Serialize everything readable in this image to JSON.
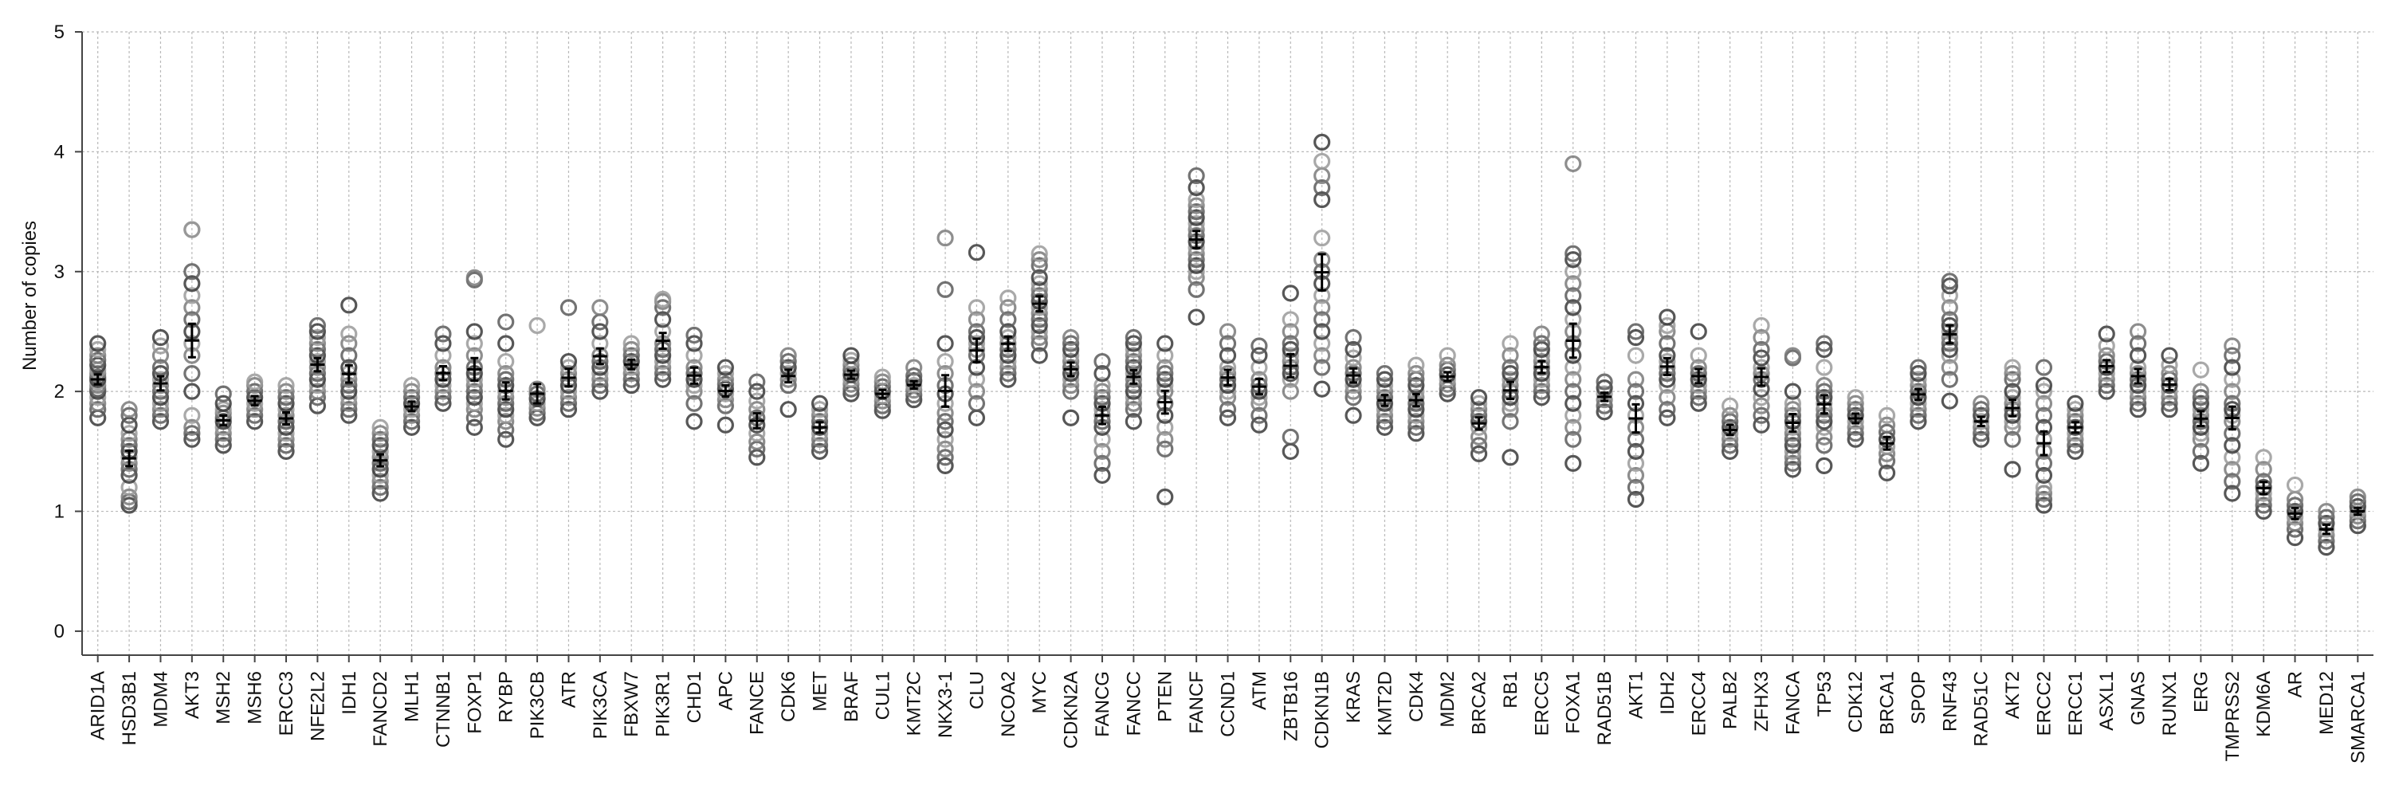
{
  "chart_data": {
    "type": "scatter",
    "title": "",
    "xlabel": "",
    "ylabel": "Number of copies",
    "ylim": [
      -0.2,
      5
    ],
    "yticks": [
      0,
      1,
      2,
      3,
      4,
      5
    ],
    "grid": true,
    "legend": "none",
    "marker": "open-circle",
    "point_colors": [
      "#3a3a3a",
      "#5a5a5a",
      "#7a7a7a",
      "#9a9a9a"
    ],
    "mean_color": "#000000",
    "categories": [
      "ARID1A",
      "HSD3B1",
      "MDM4",
      "AKT3",
      "MSH2",
      "MSH6",
      "ERCC3",
      "NFE2L2",
      "IDH1",
      "FANCD2",
      "MLH1",
      "CTNNB1",
      "FOXP1",
      "RYBP",
      "PIK3CB",
      "ATR",
      "PIK3CA",
      "FBXW7",
      "PIK3R1",
      "CHD1",
      "APC",
      "FANCE",
      "CDK6",
      "MET",
      "BRAF",
      "CUL1",
      "KMT2C",
      "NKX3-1",
      "CLU",
      "NCOA2",
      "MYC",
      "CDKN2A",
      "FANCG",
      "FANCC",
      "PTEN",
      "FANCF",
      "CCND1",
      "ATM",
      "ZBTB16",
      "CDKN1B",
      "KRAS",
      "KMT2D",
      "CDK4",
      "MDM2",
      "BRCA2",
      "RB1",
      "ERCC5",
      "FOXA1",
      "RAD51B",
      "AKT1",
      "IDH2",
      "ERCC4",
      "PALB2",
      "ZFHX3",
      "FANCA",
      "TP53",
      "CDK12",
      "BRCA1",
      "SPOP",
      "RNF43",
      "RAD51C",
      "AKT2",
      "ERCC2",
      "ERCC1",
      "ASXL1",
      "GNAS",
      "RUNX1",
      "ERG",
      "TMPRSS2",
      "KDM6A",
      "AR",
      "MED12",
      "SMARCA1"
    ],
    "series": [
      {
        "category": "ARID1A",
        "values": [
          1.78,
          1.85,
          1.9,
          1.95,
          2.0,
          2.02,
          2.05,
          2.08,
          2.1,
          2.12,
          2.15,
          2.18,
          2.22,
          2.26,
          2.3,
          2.35,
          2.4
        ]
      },
      {
        "category": "HSD3B1",
        "values": [
          1.05,
          1.08,
          1.12,
          1.2,
          1.3,
          1.35,
          1.4,
          1.45,
          1.5,
          1.55,
          1.6,
          1.65,
          1.72,
          1.8,
          1.85
        ]
      },
      {
        "category": "MDM4",
        "values": [
          1.75,
          1.8,
          1.85,
          1.9,
          1.95,
          2.0,
          2.05,
          2.1,
          2.15,
          2.2,
          2.3,
          2.38,
          2.45
        ]
      },
      {
        "category": "AKT3",
        "values": [
          1.6,
          1.65,
          1.7,
          1.8,
          2.0,
          2.15,
          2.3,
          2.4,
          2.5,
          2.6,
          2.7,
          2.8,
          2.9,
          3.0,
          3.35,
          3.35
        ]
      },
      {
        "category": "MSH2",
        "values": [
          1.55,
          1.6,
          1.65,
          1.7,
          1.75,
          1.78,
          1.82,
          1.85,
          1.9,
          1.98
        ]
      },
      {
        "category": "MSH6",
        "values": [
          1.75,
          1.8,
          1.85,
          1.9,
          1.95,
          2.0,
          2.05,
          2.08
        ]
      },
      {
        "category": "ERCC3",
        "values": [
          1.5,
          1.55,
          1.6,
          1.65,
          1.7,
          1.75,
          1.8,
          1.85,
          1.9,
          1.95,
          2.0,
          2.05
        ]
      },
      {
        "category": "NFE2L2",
        "values": [
          1.88,
          1.95,
          2.0,
          2.05,
          2.1,
          2.15,
          2.2,
          2.25,
          2.3,
          2.35,
          2.4,
          2.45,
          2.5,
          2.55
        ]
      },
      {
        "category": "IDH1",
        "values": [
          1.8,
          1.85,
          1.9,
          1.95,
          2.0,
          2.05,
          2.1,
          2.15,
          2.2,
          2.3,
          2.4,
          2.48,
          2.72
        ]
      },
      {
        "category": "FANCD2",
        "values": [
          1.15,
          1.2,
          1.25,
          1.3,
          1.35,
          1.4,
          1.45,
          1.5,
          1.55,
          1.6,
          1.65,
          1.7
        ]
      },
      {
        "category": "MLH1",
        "values": [
          1.7,
          1.75,
          1.8,
          1.85,
          1.9,
          1.95,
          2.0,
          2.05
        ]
      },
      {
        "category": "CTNNB1",
        "values": [
          1.9,
          1.95,
          2.0,
          2.05,
          2.1,
          2.15,
          2.2,
          2.3,
          2.4,
          2.48
        ]
      },
      {
        "category": "FOXP1",
        "values": [
          1.7,
          1.78,
          1.85,
          1.9,
          1.95,
          2.0,
          2.05,
          2.1,
          2.15,
          2.2,
          2.3,
          2.4,
          2.5,
          2.93,
          2.95
        ]
      },
      {
        "category": "RYBP",
        "values": [
          1.6,
          1.68,
          1.75,
          1.8,
          1.85,
          1.9,
          1.95,
          2.0,
          2.05,
          2.1,
          2.15,
          2.25,
          2.4,
          2.58
        ]
      },
      {
        "category": "PIK3CB",
        "values": [
          1.78,
          1.82,
          1.86,
          1.9,
          1.94,
          1.98,
          2.02,
          2.55
        ]
      },
      {
        "category": "ATR",
        "values": [
          1.85,
          1.9,
          1.95,
          2.0,
          2.05,
          2.1,
          2.15,
          2.2,
          2.25,
          2.7
        ]
      },
      {
        "category": "PIK3CA",
        "values": [
          2.0,
          2.05,
          2.1,
          2.15,
          2.2,
          2.25,
          2.3,
          2.4,
          2.5,
          2.58,
          2.7
        ]
      },
      {
        "category": "FBXW7",
        "values": [
          2.05,
          2.1,
          2.15,
          2.2,
          2.25,
          2.3,
          2.35,
          2.4
        ]
      },
      {
        "category": "PIK3R1",
        "values": [
          2.1,
          2.15,
          2.2,
          2.25,
          2.3,
          2.35,
          2.4,
          2.5,
          2.6,
          2.7,
          2.75,
          2.77
        ]
      },
      {
        "category": "CHD1",
        "values": [
          1.75,
          1.9,
          2.0,
          2.05,
          2.1,
          2.15,
          2.2,
          2.3,
          2.4,
          2.47
        ]
      },
      {
        "category": "APC",
        "values": [
          1.72,
          1.88,
          1.93,
          1.98,
          2.02,
          2.06,
          2.1,
          2.15,
          2.2
        ]
      },
      {
        "category": "FANCE",
        "values": [
          1.45,
          1.52,
          1.58,
          1.65,
          1.72,
          1.78,
          1.85,
          1.92,
          2.0,
          2.08
        ]
      },
      {
        "category": "CDK6",
        "values": [
          1.85,
          2.05,
          2.1,
          2.15,
          2.2,
          2.25,
          2.3
        ]
      },
      {
        "category": "MET",
        "values": [
          1.5,
          1.55,
          1.6,
          1.65,
          1.7,
          1.75,
          1.8,
          1.85,
          1.9
        ]
      },
      {
        "category": "BRAF",
        "values": [
          1.98,
          2.02,
          2.06,
          2.1,
          2.14,
          2.18,
          2.22,
          2.26,
          2.3
        ]
      },
      {
        "category": "CUL1",
        "values": [
          1.84,
          1.88,
          1.92,
          1.96,
          2.0,
          2.04,
          2.08,
          2.12
        ]
      },
      {
        "category": "KMT2C",
        "values": [
          1.93,
          1.97,
          2.01,
          2.05,
          2.09,
          2.13,
          2.2
        ]
      },
      {
        "category": "NKX3-1",
        "values": [
          1.38,
          1.45,
          1.52,
          1.6,
          1.68,
          1.75,
          1.82,
          1.9,
          1.98,
          2.05,
          2.15,
          2.25,
          2.4,
          2.85,
          3.28
        ]
      },
      {
        "category": "CLU",
        "values": [
          1.78,
          1.9,
          2.0,
          2.1,
          2.2,
          2.3,
          2.35,
          2.4,
          2.45,
          2.5,
          2.6,
          2.7,
          3.16
        ]
      },
      {
        "category": "NCOA2",
        "values": [
          2.1,
          2.15,
          2.2,
          2.25,
          2.3,
          2.35,
          2.4,
          2.45,
          2.5,
          2.6,
          2.7,
          2.78
        ]
      },
      {
        "category": "MYC",
        "values": [
          2.3,
          2.4,
          2.45,
          2.5,
          2.55,
          2.6,
          2.65,
          2.7,
          2.75,
          2.8,
          2.85,
          2.9,
          2.95,
          3.05,
          3.1,
          3.15
        ]
      },
      {
        "category": "CDKN2A",
        "values": [
          1.78,
          2.0,
          2.05,
          2.1,
          2.15,
          2.2,
          2.25,
          2.3,
          2.35,
          2.4,
          2.45
        ]
      },
      {
        "category": "FANCG",
        "values": [
          1.3,
          1.4,
          1.5,
          1.6,
          1.7,
          1.75,
          1.8,
          1.85,
          1.9,
          1.95,
          2.0,
          2.05,
          2.15,
          2.25
        ]
      },
      {
        "category": "FANCC",
        "values": [
          1.75,
          1.85,
          1.9,
          1.95,
          2.0,
          2.05,
          2.1,
          2.15,
          2.2,
          2.25,
          2.3,
          2.35,
          2.4,
          2.45
        ]
      },
      {
        "category": "PTEN",
        "values": [
          1.12,
          1.52,
          1.6,
          1.7,
          1.8,
          1.9,
          2.0,
          2.05,
          2.1,
          2.15,
          2.2,
          2.3,
          2.4
        ]
      },
      {
        "category": "FANCF",
        "values": [
          2.62,
          2.85,
          2.95,
          3.0,
          3.05,
          3.1,
          3.15,
          3.2,
          3.25,
          3.3,
          3.35,
          3.4,
          3.45,
          3.5,
          3.55,
          3.6,
          3.7,
          3.8
        ]
      },
      {
        "category": "CCND1",
        "values": [
          1.78,
          1.85,
          1.95,
          2.0,
          2.05,
          2.1,
          2.15,
          2.2,
          2.3,
          2.4,
          2.5
        ]
      },
      {
        "category": "ATM",
        "values": [
          1.72,
          1.8,
          1.9,
          1.95,
          2.0,
          2.05,
          2.1,
          2.2,
          2.3,
          2.38
        ]
      },
      {
        "category": "ZBTB16",
        "values": [
          1.5,
          1.62,
          2.0,
          2.1,
          2.15,
          2.2,
          2.25,
          2.3,
          2.35,
          2.4,
          2.5,
          2.6,
          2.82
        ]
      },
      {
        "category": "CDKN1B",
        "values": [
          2.02,
          2.2,
          2.3,
          2.4,
          2.5,
          2.6,
          2.7,
          2.8,
          2.9,
          3.0,
          3.1,
          3.28,
          3.6,
          3.7,
          3.8,
          3.92,
          4.08
        ]
      },
      {
        "category": "KRAS",
        "values": [
          1.8,
          1.95,
          2.0,
          2.05,
          2.1,
          2.15,
          2.2,
          2.28,
          2.35,
          2.45
        ]
      },
      {
        "category": "KMT2D",
        "values": [
          1.7,
          1.75,
          1.8,
          1.85,
          1.9,
          1.95,
          2.0,
          2.05,
          2.1,
          2.15
        ]
      },
      {
        "category": "CDK4",
        "values": [
          1.65,
          1.7,
          1.75,
          1.8,
          1.85,
          1.9,
          1.95,
          2.0,
          2.05,
          2.1,
          2.15,
          2.22
        ]
      },
      {
        "category": "MDM2",
        "values": [
          1.98,
          2.02,
          2.06,
          2.1,
          2.14,
          2.18,
          2.22,
          2.3
        ]
      },
      {
        "category": "BRCA2",
        "values": [
          1.48,
          1.55,
          1.62,
          1.7,
          1.75,
          1.8,
          1.85,
          1.9,
          1.95
        ]
      },
      {
        "category": "RB1",
        "values": [
          1.45,
          1.75,
          1.85,
          1.9,
          1.95,
          2.0,
          2.05,
          2.1,
          2.15,
          2.2,
          2.3,
          2.4
        ]
      },
      {
        "category": "ERCC5",
        "values": [
          1.95,
          2.0,
          2.05,
          2.1,
          2.15,
          2.2,
          2.25,
          2.3,
          2.35,
          2.4,
          2.48
        ]
      },
      {
        "category": "FOXA1",
        "values": [
          1.4,
          1.6,
          1.7,
          1.8,
          1.9,
          2.0,
          2.1,
          2.2,
          2.3,
          2.4,
          2.5,
          2.6,
          2.7,
          2.8,
          2.9,
          3.0,
          3.1,
          3.15,
          3.9
        ]
      },
      {
        "category": "RAD51B",
        "values": [
          1.83,
          1.88,
          1.93,
          1.98,
          2.03,
          2.08
        ]
      },
      {
        "category": "AKT1",
        "values": [
          1.1,
          1.2,
          1.3,
          1.4,
          1.5,
          1.6,
          1.7,
          1.8,
          1.9,
          2.0,
          2.1,
          2.3,
          2.45,
          2.5
        ]
      },
      {
        "category": "IDH2",
        "values": [
          1.78,
          1.85,
          1.95,
          2.05,
          2.1,
          2.15,
          2.2,
          2.25,
          2.3,
          2.4,
          2.5,
          2.55,
          2.62
        ]
      },
      {
        "category": "ERCC4",
        "values": [
          1.9,
          1.95,
          2.0,
          2.05,
          2.1,
          2.15,
          2.2,
          2.3,
          2.5
        ]
      },
      {
        "category": "PALB2",
        "values": [
          1.5,
          1.55,
          1.6,
          1.65,
          1.7,
          1.75,
          1.8,
          1.88
        ]
      },
      {
        "category": "ZFHX3",
        "values": [
          1.72,
          1.8,
          1.88,
          1.95,
          2.02,
          2.1,
          2.15,
          2.2,
          2.28,
          2.35,
          2.45,
          2.55
        ]
      },
      {
        "category": "FANCA",
        "values": [
          1.35,
          1.4,
          1.45,
          1.5,
          1.55,
          1.6,
          1.65,
          1.7,
          1.75,
          1.8,
          1.85,
          1.9,
          2.0,
          2.28,
          2.3
        ]
      },
      {
        "category": "TP53",
        "values": [
          1.38,
          1.55,
          1.62,
          1.7,
          1.75,
          1.8,
          1.85,
          1.9,
          1.95,
          2.0,
          2.05,
          2.2,
          2.35,
          2.4
        ]
      },
      {
        "category": "CDK12",
        "values": [
          1.6,
          1.65,
          1.7,
          1.75,
          1.8,
          1.85,
          1.9,
          1.95
        ]
      },
      {
        "category": "BRCA1",
        "values": [
          1.32,
          1.42,
          1.48,
          1.54,
          1.6,
          1.66,
          1.72,
          1.8
        ]
      },
      {
        "category": "SPOP",
        "values": [
          1.75,
          1.8,
          1.85,
          1.9,
          1.95,
          2.0,
          2.05,
          2.1,
          2.15,
          2.2
        ]
      },
      {
        "category": "RNF43",
        "values": [
          1.92,
          2.1,
          2.2,
          2.3,
          2.35,
          2.4,
          2.45,
          2.5,
          2.55,
          2.6,
          2.7,
          2.8,
          2.88,
          2.92
        ]
      },
      {
        "category": "RAD51C",
        "values": [
          1.6,
          1.65,
          1.7,
          1.75,
          1.8,
          1.85,
          1.9
        ]
      },
      {
        "category": "AKT2",
        "values": [
          1.35,
          1.6,
          1.7,
          1.75,
          1.8,
          1.85,
          1.9,
          1.95,
          2.0,
          2.1,
          2.15,
          2.2
        ]
      },
      {
        "category": "ERCC2",
        "values": [
          1.05,
          1.1,
          1.15,
          1.2,
          1.3,
          1.4,
          1.5,
          1.6,
          1.7,
          1.8,
          1.9,
          2.0,
          2.05,
          2.2
        ]
      },
      {
        "category": "ERCC1",
        "values": [
          1.5,
          1.55,
          1.6,
          1.65,
          1.7,
          1.75,
          1.8,
          1.85,
          1.9
        ]
      },
      {
        "category": "ASXL1",
        "values": [
          2.0,
          2.05,
          2.1,
          2.15,
          2.2,
          2.25,
          2.3,
          2.38,
          2.48
        ]
      },
      {
        "category": "GNAS",
        "values": [
          1.85,
          1.9,
          1.95,
          2.0,
          2.05,
          2.1,
          2.15,
          2.2,
          2.3,
          2.4,
          2.5
        ]
      },
      {
        "category": "RUNX1",
        "values": [
          1.85,
          1.9,
          1.95,
          2.0,
          2.05,
          2.1,
          2.15,
          2.22,
          2.3
        ]
      },
      {
        "category": "ERG",
        "values": [
          1.4,
          1.5,
          1.6,
          1.65,
          1.7,
          1.75,
          1.8,
          1.85,
          1.9,
          1.95,
          2.0,
          2.18
        ]
      },
      {
        "category": "TMPRSS2",
        "values": [
          1.15,
          1.25,
          1.35,
          1.45,
          1.55,
          1.65,
          1.75,
          1.8,
          1.85,
          1.9,
          2.0,
          2.1,
          2.2,
          2.3,
          2.38
        ]
      },
      {
        "category": "KDM6A",
        "values": [
          1.0,
          1.05,
          1.1,
          1.15,
          1.2,
          1.25,
          1.35,
          1.45
        ]
      },
      {
        "category": "AR",
        "values": [
          0.78,
          0.85,
          0.9,
          0.95,
          1.0,
          1.05,
          1.1,
          1.22
        ]
      },
      {
        "category": "MED12",
        "values": [
          0.7,
          0.75,
          0.8,
          0.85,
          0.9,
          0.95,
          1.0
        ]
      },
      {
        "category": "SMARCA1",
        "values": [
          0.88,
          0.92,
          0.96,
          1.0,
          1.04,
          1.08,
          1.12
        ]
      }
    ]
  }
}
